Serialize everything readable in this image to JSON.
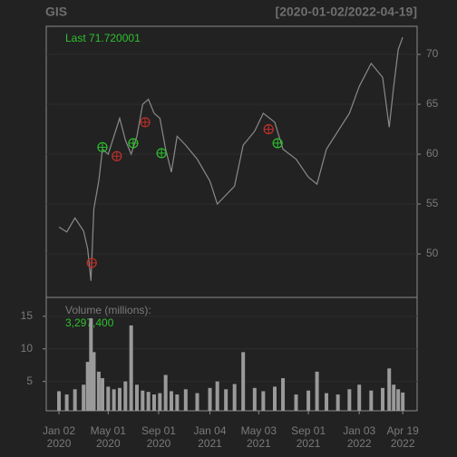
{
  "chart_data": {
    "type": "line",
    "title": "GIS",
    "date_range": "[2020-01-02/2022-04-19]",
    "last_label": "Last 71.720001",
    "volume_title": "Volume (millions):",
    "volume_last": "3,297,400",
    "x": [
      "2020-01-02",
      "2020-01-21",
      "2020-02-10",
      "2020-03-02",
      "2020-03-12",
      "2020-03-20",
      "2020-03-27",
      "2020-04-08",
      "2020-04-17",
      "2020-05-01",
      "2020-05-15",
      "2020-05-29",
      "2020-06-12",
      "2020-06-26",
      "2020-07-10",
      "2020-07-24",
      "2020-08-07",
      "2020-08-21",
      "2020-09-04",
      "2020-09-18",
      "2020-10-02",
      "2020-10-16",
      "2020-11-06",
      "2020-12-04",
      "2021-01-04",
      "2021-01-22",
      "2021-02-12",
      "2021-03-05",
      "2021-03-26",
      "2021-04-23",
      "2021-05-14",
      "2021-06-11",
      "2021-07-01",
      "2021-08-02",
      "2021-09-01",
      "2021-09-22",
      "2021-10-15",
      "2021-11-12",
      "2021-12-10",
      "2022-01-03",
      "2022-02-01",
      "2022-03-01",
      "2022-03-17",
      "2022-03-28",
      "2022-04-08",
      "2022-04-19"
    ],
    "series": [
      {
        "color": "#8a8a8a",
        "values": [
          52.7,
          52.2,
          53.6,
          52.3,
          50.5,
          47.3,
          54.5,
          57.3,
          60.5,
          60.0,
          61.8,
          63.6,
          61.4,
          60.0,
          61.8,
          65.0,
          65.5,
          64.1,
          63.6,
          60.5,
          58.2,
          61.8,
          60.9,
          59.5,
          57.3,
          55.0,
          55.9,
          56.8,
          60.9,
          62.3,
          64.1,
          63.2,
          60.5,
          59.5,
          57.7,
          57.0,
          60.5,
          62.3,
          64.1,
          66.8,
          69.1,
          67.7,
          62.7,
          66.8,
          70.5,
          71.72
        ]
      },
      {
        "color": "#9a9a9a",
        "axis": "volume",
        "values": [
          3.5,
          3.0,
          3.8,
          4.5,
          8.0,
          14.7,
          9.5,
          6.5,
          5.5,
          4.2,
          3.8,
          4.0,
          5.0,
          13.6,
          4.5,
          3.6,
          3.4,
          3.0,
          3.2,
          6.0,
          3.5,
          3.0,
          3.8,
          3.2,
          4.0,
          5.0,
          3.8,
          4.6,
          9.5,
          4.0,
          3.5,
          4.2,
          5.5,
          3.0,
          3.6,
          6.5,
          3.2,
          3.0,
          3.8,
          4.5,
          3.6,
          4.0,
          7.0,
          4.5,
          3.8,
          3.3
        ]
      }
    ],
    "points": [
      {
        "color": "#c0302a",
        "x": [
          "2020-03-22",
          "2020-05-22",
          "2020-07-30",
          "2021-05-27"
        ],
        "values": [
          49.1,
          59.8,
          63.2,
          62.5
        ]
      },
      {
        "color": "#2ec02e",
        "x": [
          "2020-04-17",
          "2020-07-01",
          "2020-09-08",
          "2021-06-18"
        ],
        "values": [
          60.7,
          61.1,
          60.1,
          61.1
        ]
      }
    ],
    "xlim": [
      "2019-12-02",
      "2022-05-24"
    ],
    "xticks": [
      {
        "value": "2020-01-02",
        "label": [
          "Jan 02",
          "2020"
        ]
      },
      {
        "value": "2020-05-01",
        "label": [
          "May 01",
          "2020"
        ]
      },
      {
        "value": "2020-09-01",
        "label": [
          "Sep 01",
          "2020"
        ]
      },
      {
        "value": "2021-01-04",
        "label": [
          "Jan 04",
          "2021"
        ]
      },
      {
        "value": "2021-05-03",
        "label": [
          "May 03",
          "2021"
        ]
      },
      {
        "value": "2021-09-01",
        "label": [
          "Sep 01",
          "2021"
        ]
      },
      {
        "value": "2022-01-03",
        "label": [
          "Jan 03",
          "2022"
        ]
      },
      {
        "value": "2022-04-19",
        "label": [
          "Apr 19",
          "2022"
        ]
      }
    ],
    "ylim": [
      45.64,
      72.82
    ],
    "yticks": [
      50,
      55,
      60,
      65,
      70
    ],
    "y2lim": [
      0.5,
      17.9
    ],
    "y2ticks": [
      5,
      10,
      15
    ],
    "grid": true
  }
}
